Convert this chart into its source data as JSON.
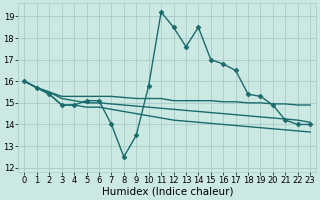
{
  "bg_color": "#cbe8e3",
  "grid_color": "#a8ccca",
  "line_color": "#1a6b6b",
  "line_width": 1.0,
  "marker": "D",
  "marker_size": 2.5,
  "xlabel": "Humidex (Indice chaleur)",
  "xlabel_fontsize": 7.5,
  "tick_fontsize": 6.0,
  "xlim": [
    -0.5,
    23.5
  ],
  "ylim": [
    11.8,
    19.6
  ],
  "yticks": [
    12,
    13,
    14,
    15,
    16,
    17,
    18,
    19
  ],
  "xtick_labels": [
    "0",
    "1",
    "2",
    "3",
    "4",
    "5",
    "6",
    "7",
    "8",
    "9",
    "10",
    "11",
    "12",
    "13",
    "14",
    "15",
    "16",
    "17",
    "18",
    "19",
    "20",
    "21",
    "22",
    "23"
  ],
  "series": [
    [
      16.0,
      15.7,
      15.4,
      14.9,
      14.9,
      15.1,
      15.1,
      14.0,
      12.5,
      13.5,
      15.8,
      19.2,
      18.5,
      17.6,
      18.5,
      17.0,
      16.8,
      16.5,
      15.4,
      15.3,
      14.9,
      14.2,
      14.0,
      14.0
    ],
    [
      16.0,
      15.7,
      15.5,
      15.3,
      15.3,
      15.3,
      15.3,
      15.3,
      15.25,
      15.2,
      15.2,
      15.2,
      15.1,
      15.1,
      15.1,
      15.1,
      15.05,
      15.05,
      15.0,
      15.0,
      14.95,
      14.95,
      14.9,
      14.9
    ],
    [
      16.0,
      15.7,
      15.5,
      15.2,
      15.1,
      15.0,
      15.0,
      14.95,
      14.9,
      14.85,
      14.8,
      14.75,
      14.7,
      14.65,
      14.6,
      14.55,
      14.5,
      14.45,
      14.4,
      14.35,
      14.3,
      14.25,
      14.2,
      14.1
    ],
    [
      16.0,
      15.7,
      15.4,
      14.9,
      14.9,
      14.8,
      14.8,
      14.7,
      14.6,
      14.5,
      14.4,
      14.3,
      14.2,
      14.15,
      14.1,
      14.05,
      14.0,
      13.95,
      13.9,
      13.85,
      13.8,
      13.75,
      13.7,
      13.65
    ]
  ],
  "series_markers": [
    true,
    false,
    false,
    false
  ]
}
